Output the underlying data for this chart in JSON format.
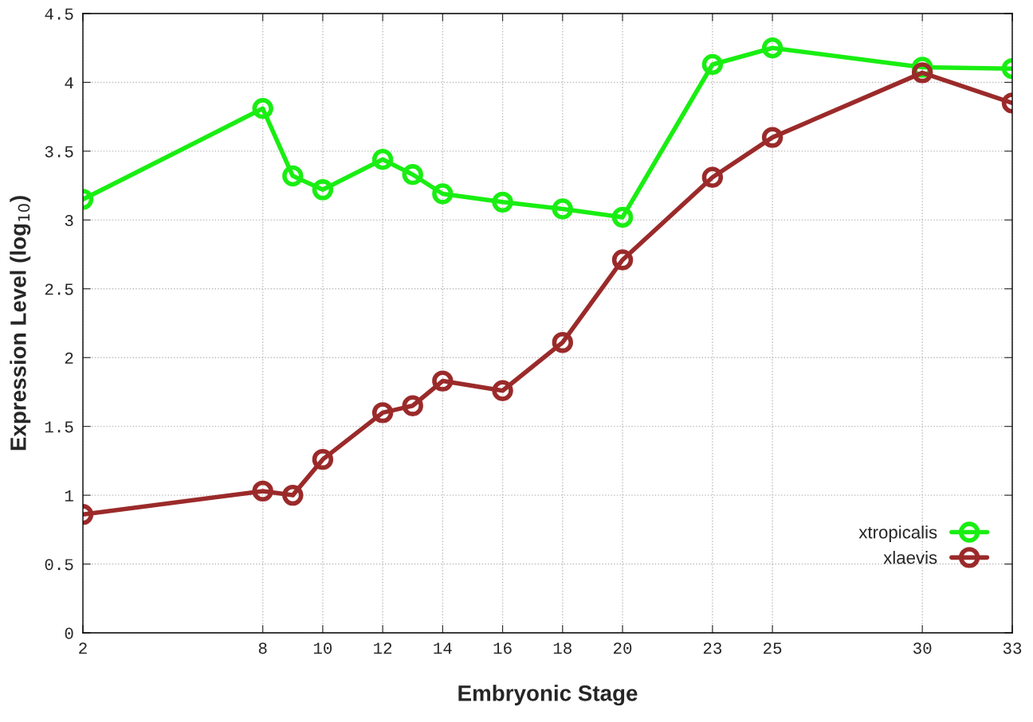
{
  "chart_data": {
    "type": "line",
    "xlabel": "Embryonic Stage",
    "ylabel": "Expression Level (log$_{10}$)",
    "x": [
      2,
      8,
      9,
      10,
      12,
      13,
      14,
      16,
      18,
      20,
      23,
      25,
      30,
      33
    ],
    "series": [
      {
        "name": "xtropicalis",
        "color": "#19ee12",
        "values": [
          3.15,
          3.81,
          3.32,
          3.22,
          3.44,
          3.33,
          3.19,
          3.13,
          3.08,
          3.02,
          4.13,
          4.25,
          4.11,
          4.1
        ]
      },
      {
        "name": "xlaevis",
        "color": "#9b2a2a",
        "values": [
          0.86,
          1.03,
          1.0,
          1.26,
          1.6,
          1.65,
          1.83,
          1.76,
          2.11,
          2.71,
          3.31,
          3.6,
          4.07,
          3.85
        ]
      }
    ],
    "xlim": [
      2,
      33
    ],
    "xticks": [
      2,
      8,
      10,
      12,
      14,
      16,
      18,
      20,
      23,
      25,
      30,
      33
    ],
    "ylim": [
      0,
      4.5
    ],
    "yticks": [
      0,
      {
        "value": 0.5,
        "label": "0.5"
      },
      1,
      {
        "value": 1.5,
        "label": "1.5"
      },
      2,
      {
        "value": 2.5,
        "label": "2.5"
      },
      3,
      {
        "value": 3.5,
        "label": "3.5"
      },
      4,
      {
        "value": 4.5,
        "label": "4.5"
      }
    ],
    "grid": true,
    "legend": "bottom right",
    "marker": "circle",
    "line_style": "solid"
  }
}
